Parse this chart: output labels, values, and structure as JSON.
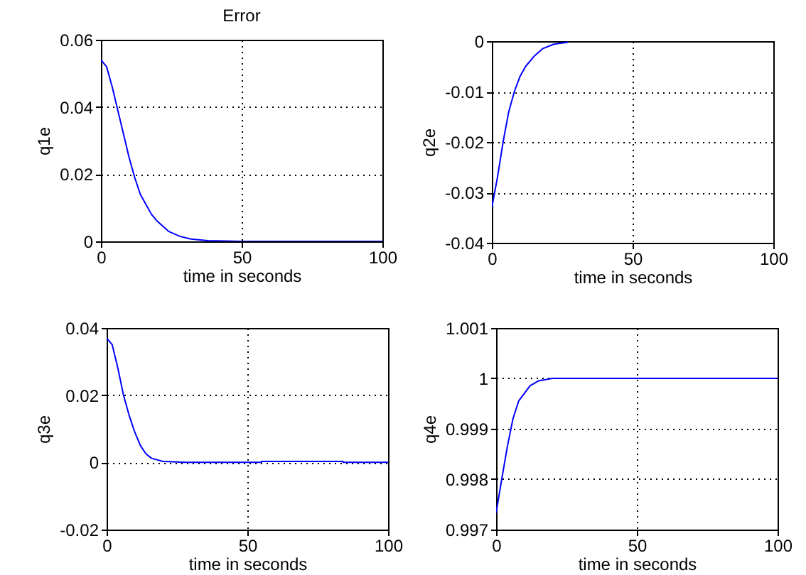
{
  "chart_data": [
    {
      "type": "line",
      "title": "Error",
      "xlabel": "time  in seconds",
      "ylabel": "q1e",
      "color": "#0000ff",
      "grid": true,
      "x": [
        0,
        2,
        4,
        6,
        8,
        10,
        12,
        14,
        16,
        18,
        20,
        24,
        28,
        32,
        38,
        50,
        100
      ],
      "values": [
        0.054,
        0.052,
        0.046,
        0.039,
        0.032,
        0.025,
        0.019,
        0.014,
        0.011,
        0.008,
        0.006,
        0.003,
        0.0015,
        0.0007,
        0.0002,
        0,
        0
      ],
      "xlim": [
        0,
        100
      ],
      "xticks": [
        0,
        50,
        100
      ],
      "ylim": [
        0,
        0.06
      ],
      "yticks": [
        0,
        0.02,
        0.04,
        0.06
      ]
    },
    {
      "type": "line",
      "xlabel": "time  in seconds",
      "ylabel": "q2e",
      "color": "#0000ff",
      "grid": true,
      "x": [
        0,
        2,
        4,
        6,
        8,
        10,
        12,
        15,
        18,
        22,
        27
      ],
      "values": [
        -0.033,
        -0.027,
        -0.02,
        -0.014,
        -0.01,
        -0.007,
        -0.005,
        -0.003,
        -0.0015,
        -0.0006,
        -0.0002
      ],
      "xlim": [
        0,
        100
      ],
      "xticks": [
        0,
        50,
        100
      ],
      "ylim": [
        -0.04,
        0
      ],
      "yticks": [
        -0.04,
        -0.03,
        -0.02,
        -0.01,
        0
      ]
    },
    {
      "type": "line",
      "xlabel": "time  in seconds",
      "ylabel": "q3e",
      "color": "#0000ff",
      "grid": true,
      "x": [
        0,
        2,
        4,
        6,
        8,
        10,
        12,
        14,
        16,
        20,
        25,
        28,
        55,
        55,
        84,
        84,
        100
      ],
      "values": [
        0.037,
        0.035,
        0.028,
        0.02,
        0.014,
        0.009,
        0.005,
        0.0025,
        0.0012,
        0.0003,
        0.0001,
        0,
        0,
        0.0003,
        0.0003,
        0,
        0
      ],
      "xlim": [
        0,
        100
      ],
      "xticks": [
        0,
        50,
        100
      ],
      "ylim": [
        -0.02,
        0.04
      ],
      "yticks": [
        -0.02,
        0,
        0.02,
        0.04
      ]
    },
    {
      "type": "line",
      "xlabel": "time  in seconds",
      "ylabel": "q4e",
      "color": "#0000ff",
      "grid": true,
      "x": [
        0,
        2,
        4,
        6,
        8,
        10,
        12,
        15,
        20,
        100
      ],
      "values": [
        0.99733,
        0.998,
        0.99865,
        0.9992,
        0.99955,
        0.9997,
        0.99985,
        0.99995,
        1,
        1
      ],
      "xlim": [
        0,
        100
      ],
      "xticks": [
        0,
        50,
        100
      ],
      "ylim": [
        0.997,
        1.001
      ],
      "yticks": [
        0.997,
        0.998,
        0.999,
        1,
        1.001
      ]
    }
  ]
}
